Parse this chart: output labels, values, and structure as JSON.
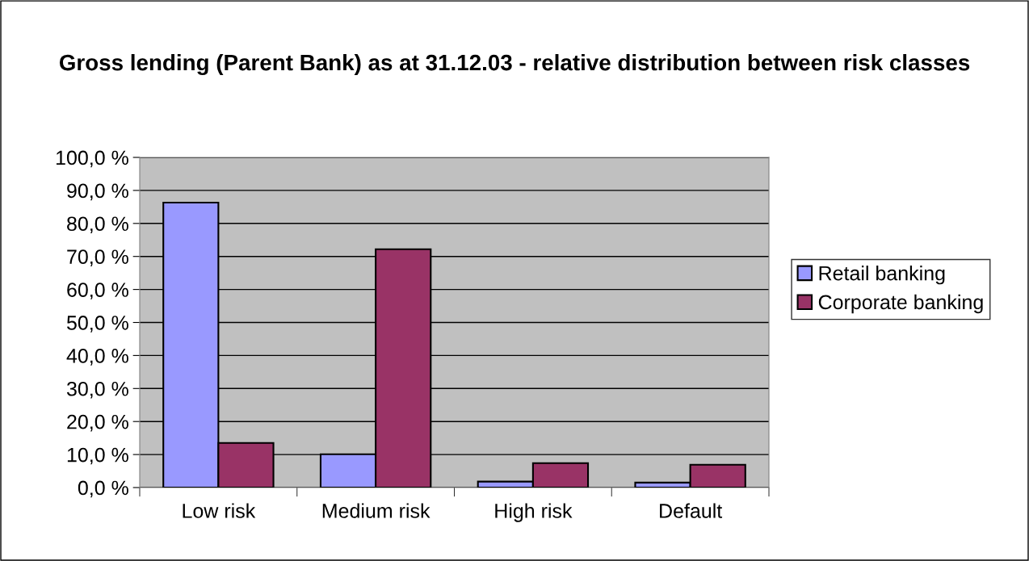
{
  "chart_data": {
    "type": "bar",
    "title": "Gross lending (Parent Bank) as at 31.12.03 - relative distribution between risk classes",
    "categories": [
      "Low risk",
      "Medium risk",
      "High risk",
      "Default"
    ],
    "series": [
      {
        "name": "Retail banking",
        "color": "#9999ff",
        "values": [
          86.3,
          10.1,
          1.8,
          1.5
        ]
      },
      {
        "name": "Corporate banking",
        "color": "#993366",
        "values": [
          13.5,
          72.2,
          7.4,
          6.9
        ]
      }
    ],
    "ylim": [
      0,
      100
    ],
    "yticks": [
      {
        "value": 0,
        "label": "0,0 %"
      },
      {
        "value": 10,
        "label": "10,0 %"
      },
      {
        "value": 20,
        "label": "20,0 %"
      },
      {
        "value": 30,
        "label": "30,0 %"
      },
      {
        "value": 40,
        "label": "40,0 %"
      },
      {
        "value": 50,
        "label": "50,0 %"
      },
      {
        "value": 60,
        "label": "60,0 %"
      },
      {
        "value": 70,
        "label": "70,0 %"
      },
      {
        "value": 80,
        "label": "80,0 %"
      },
      {
        "value": 90,
        "label": "90,0 %"
      },
      {
        "value": 100,
        "label": "100,0 %"
      }
    ],
    "grid": "y",
    "legend": "right"
  }
}
